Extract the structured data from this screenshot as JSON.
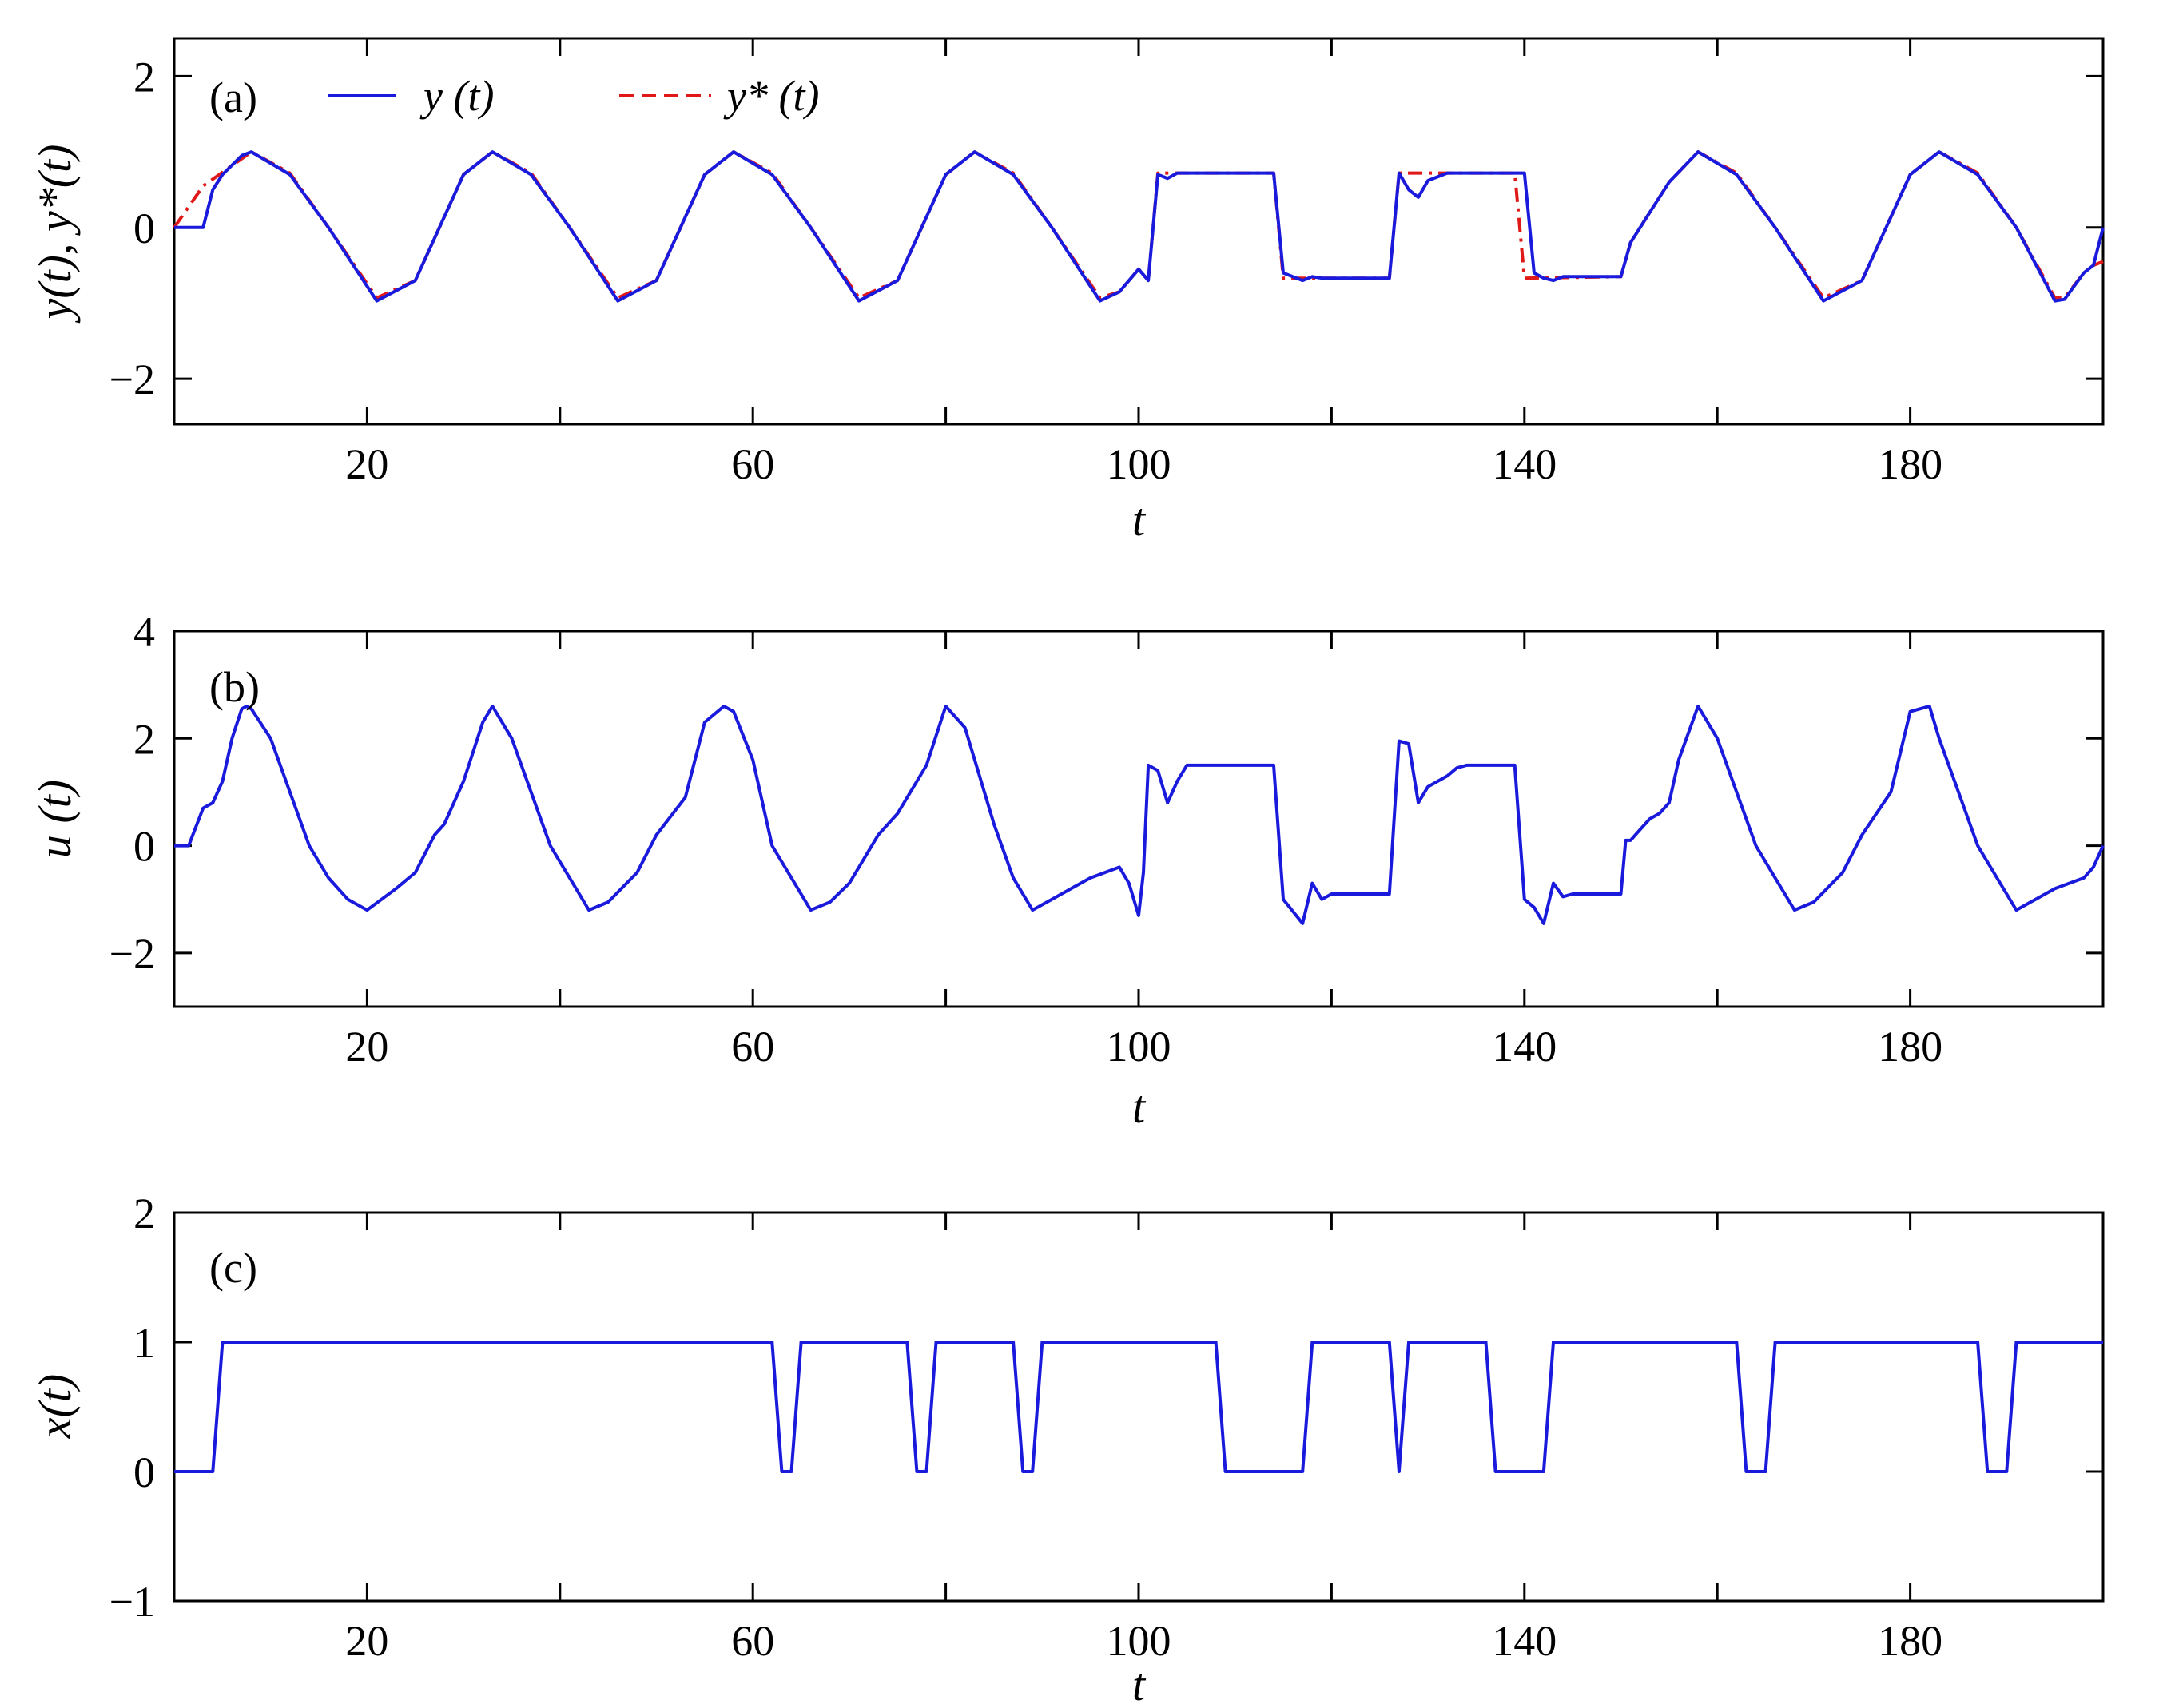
{
  "chart_data": [
    {
      "type": "line",
      "panel_label": "(a)",
      "xlabel": "t",
      "ylabel": "y(t), y*(t)",
      "xlim": [
        0,
        200
      ],
      "ylim": [
        -2.6,
        2.5
      ],
      "xticks": [
        20,
        60,
        100,
        140,
        180
      ],
      "yticks": [
        -2,
        0,
        2
      ],
      "legend_position": "top-left",
      "series": [
        {
          "name": "y (t)",
          "color": "#1a1adc",
          "style": "solid",
          "x": [
            0,
            3,
            4,
            5,
            7,
            8,
            12,
            16,
            21,
            25,
            30,
            33,
            37,
            41,
            46,
            50,
            55,
            58,
            62,
            66,
            71,
            75,
            80,
            83,
            87,
            91,
            96,
            98,
            100,
            101,
            102,
            103,
            104,
            106,
            112,
            114,
            115,
            117,
            118,
            119,
            124,
            126,
            127,
            128,
            129,
            130,
            132,
            139,
            140,
            141,
            142,
            143,
            144,
            150,
            151,
            153,
            155,
            158,
            162,
            166,
            171,
            175,
            180,
            183,
            187,
            191,
            195,
            196,
            198,
            199,
            200
          ],
          "y": [
            0,
            0,
            0.5,
            0.7,
            0.95,
            1.0,
            0.7,
            0,
            -0.97,
            -0.7,
            0.7,
            1.0,
            0.7,
            0,
            -0.97,
            -0.7,
            0.7,
            1.0,
            0.7,
            0,
            -0.97,
            -0.7,
            0.7,
            1.0,
            0.7,
            0,
            -0.97,
            -0.85,
            -0.55,
            -0.7,
            0.7,
            0.65,
            0.72,
            0.72,
            0.72,
            0.72,
            -0.6,
            -0.7,
            -0.65,
            -0.67,
            -0.67,
            -0.67,
            0.72,
            0.5,
            0.4,
            0.62,
            0.72,
            0.72,
            0.72,
            -0.6,
            -0.67,
            -0.7,
            -0.65,
            -0.65,
            -0.2,
            0.2,
            0.6,
            1.0,
            0.7,
            0,
            -0.97,
            -0.7,
            0.7,
            1.0,
            0.7,
            0,
            -0.97,
            -0.95,
            -0.6,
            -0.5,
            0
          ]
        },
        {
          "name": "y* (t)",
          "color": "#e01818",
          "style": "dash-dot",
          "x": [
            0,
            3,
            8,
            12,
            16,
            21,
            25,
            30,
            33,
            37,
            41,
            46,
            50,
            55,
            58,
            62,
            66,
            71,
            75,
            80,
            83,
            87,
            91,
            96,
            98,
            100,
            101,
            102,
            103,
            114,
            115,
            126,
            127,
            139,
            140,
            150,
            151,
            153,
            155,
            158,
            162,
            166,
            171,
            175,
            180,
            183,
            187,
            191,
            195,
            196,
            198,
            199,
            200
          ],
          "y": [
            0,
            0.55,
            1.0,
            0.72,
            0,
            -0.93,
            -0.7,
            0.7,
            1.0,
            0.72,
            0,
            -0.93,
            -0.7,
            0.7,
            1.0,
            0.72,
            0,
            -0.93,
            -0.7,
            0.7,
            1.0,
            0.72,
            0,
            -0.93,
            -0.85,
            -0.55,
            -0.7,
            0.72,
            0.72,
            0.72,
            -0.67,
            -0.67,
            0.72,
            0.72,
            -0.67,
            -0.65,
            -0.2,
            0.2,
            0.6,
            1.0,
            0.72,
            0,
            -0.93,
            -0.7,
            0.7,
            1.0,
            0.72,
            0,
            -0.93,
            -0.93,
            -0.6,
            -0.5,
            -0.45
          ]
        }
      ]
    },
    {
      "type": "line",
      "panel_label": "(b)",
      "xlabel": "t",
      "ylabel": "u (t)",
      "xlim": [
        0,
        200
      ],
      "ylim": [
        -3,
        4
      ],
      "xticks": [
        20,
        60,
        100,
        140,
        180
      ],
      "yticks": [
        -2,
        0,
        2,
        4
      ],
      "series": [
        {
          "name": "",
          "color": "#1a1adc",
          "style": "solid",
          "x": [
            0,
            1.5,
            3,
            4,
            5,
            6,
            7,
            7.5,
            8,
            10,
            12,
            14,
            16,
            18,
            20,
            23,
            25,
            27,
            28,
            30,
            32,
            33,
            35,
            37,
            39,
            41,
            43,
            45,
            48,
            50,
            53,
            55,
            57,
            58,
            60,
            62,
            64,
            66,
            68,
            70,
            73,
            75,
            78,
            80,
            82,
            83,
            85,
            87,
            89,
            91,
            93,
            95,
            98,
            99,
            100,
            100.5,
            101,
            102,
            103,
            104,
            105,
            106,
            114,
            115,
            117,
            118,
            119,
            120,
            126,
            127,
            128,
            129,
            130,
            132,
            133,
            134,
            136,
            139,
            140,
            141,
            142,
            143,
            144,
            145,
            150,
            150.5,
            151,
            152,
            153,
            154,
            155,
            156,
            158,
            160,
            162,
            164,
            166,
            168,
            170,
            173,
            175,
            178,
            180,
            182,
            183,
            185,
            187,
            189,
            191,
            193,
            195,
            198,
            199,
            200
          ],
          "y": [
            0,
            0,
            0.7,
            0.8,
            1.2,
            2.0,
            2.55,
            2.6,
            2.55,
            2.0,
            1.0,
            0,
            -0.6,
            -1.0,
            -1.2,
            -0.8,
            -0.5,
            0.2,
            0.4,
            1.2,
            2.3,
            2.6,
            2.0,
            1.0,
            0,
            -0.6,
            -1.2,
            -1.05,
            -0.5,
            0.2,
            0.9,
            2.3,
            2.6,
            2.5,
            1.6,
            0,
            -0.6,
            -1.2,
            -1.05,
            -0.7,
            0.2,
            0.6,
            1.5,
            2.6,
            2.2,
            1.6,
            0.4,
            -0.6,
            -1.2,
            -1.0,
            -0.8,
            -0.6,
            -0.4,
            -0.7,
            -1.3,
            -0.5,
            1.5,
            1.4,
            0.8,
            1.2,
            1.5,
            1.5,
            1.5,
            -1.0,
            -1.45,
            -0.7,
            -1.0,
            -0.9,
            -0.9,
            1.95,
            1.9,
            0.8,
            1.1,
            1.3,
            1.45,
            1.5,
            1.5,
            1.5,
            -1.0,
            -1.15,
            -1.45,
            -0.7,
            -0.95,
            -0.9,
            -0.9,
            0.1,
            0.1,
            0.3,
            0.5,
            0.6,
            0.8,
            1.6,
            2.6,
            2.0,
            1.0,
            0,
            -0.6,
            -1.2,
            -1.05,
            -0.5,
            0.2,
            1.0,
            2.5,
            2.6,
            2.0,
            1.0,
            0,
            -0.6,
            -1.2,
            -1.0,
            -0.8,
            -0.6,
            -0.4,
            0
          ]
        }
      ]
    },
    {
      "type": "line",
      "panel_label": "(c)",
      "xlabel": "t",
      "ylabel": "x(t)",
      "xlim": [
        0,
        200
      ],
      "ylim": [
        -1,
        2
      ],
      "xticks": [
        20,
        60,
        100,
        140,
        180
      ],
      "yticks": [
        -1,
        0,
        1,
        2
      ],
      "series": [
        {
          "name": "",
          "color": "#1a1adc",
          "style": "solid",
          "x": [
            0,
            4,
            5,
            62,
            63,
            64,
            65,
            76,
            77,
            78,
            79,
            87,
            88,
            89,
            90,
            108,
            109,
            117,
            118,
            126,
            127,
            128,
            136,
            137,
            142,
            143,
            162,
            163,
            165,
            166,
            187,
            188,
            190,
            191,
            200
          ],
          "y": [
            0,
            0,
            1,
            1,
            0,
            0,
            1,
            1,
            0,
            0,
            1,
            1,
            0,
            0,
            1,
            1,
            0,
            0,
            1,
            1,
            0,
            1,
            1,
            0,
            0,
            1,
            1,
            0,
            0,
            1,
            1,
            0,
            0,
            1,
            1
          ]
        }
      ]
    }
  ],
  "colors": {
    "axis": "#000000",
    "line_primary": "#1a1adc",
    "line_reference": "#e01818"
  }
}
